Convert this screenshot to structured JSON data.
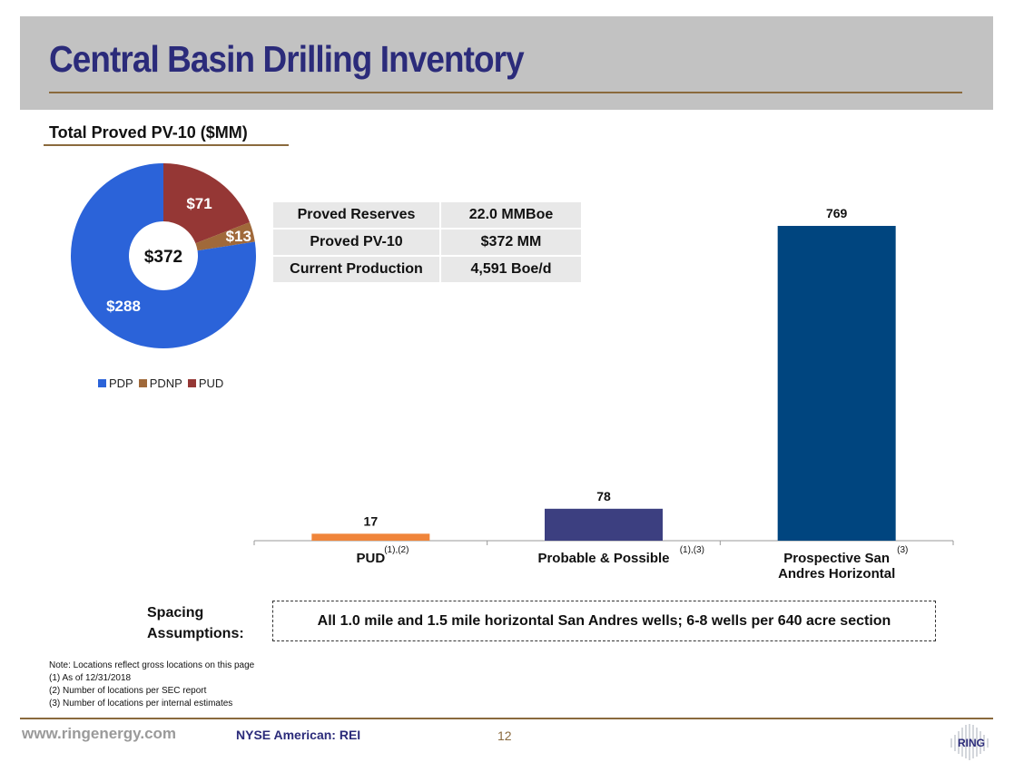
{
  "slide": {
    "title": "Central Basin Drilling Inventory",
    "section_title": "Total Proved PV-10 ($MM)"
  },
  "colors": {
    "pdp": "#2b63d9",
    "pdnp": "#a0693a",
    "pud_slice": "#953735",
    "bar_pud": "#f0853a",
    "bar_probable": "#3c3f80",
    "bar_prospective": "#00457f",
    "title": "#2b2b7a",
    "accent_rule": "#8a6a3d"
  },
  "kpi_table": [
    {
      "label": "Proved Reserves",
      "value": "22.0 MMBoe"
    },
    {
      "label": "Proved PV-10",
      "value": "$372 MM"
    },
    {
      "label": "Current Production",
      "value": "4,591 Boe/d"
    }
  ],
  "chart_data": [
    {
      "type": "pie",
      "donut": true,
      "center_label": "$372",
      "slices": [
        {
          "name": "PDP",
          "value": 288,
          "label": "$288",
          "color": "#2b63d9"
        },
        {
          "name": "PDNP",
          "value": 13,
          "label": "$13",
          "color": "#a0693a"
        },
        {
          "name": "PUD",
          "value": 71,
          "label": "$71",
          "color": "#953735"
        }
      ],
      "legend": [
        "PDP",
        "PDNP",
        "PUD"
      ],
      "legend_position": "bottom-left"
    },
    {
      "type": "bar",
      "categories": [
        {
          "lines": [
            "PUD"
          ],
          "footnote": "(1),(2)"
        },
        {
          "lines": [
            "Probable & Possible"
          ],
          "footnote": "(1),(3)"
        },
        {
          "lines": [
            "Prospective San",
            "Andres Horizontal"
          ],
          "footnote": "(3)"
        }
      ],
      "values": [
        17,
        78,
        769
      ],
      "data_labels": [
        "17",
        "78",
        "769"
      ],
      "colors": [
        "#f0853a",
        "#3c3f80",
        "#00457f"
      ],
      "ylim": [
        0,
        820
      ],
      "grid": false
    }
  ],
  "spacing": {
    "label_line1": "Spacing",
    "label_line2": "Assumptions:",
    "text": "All 1.0 mile and 1.5 mile horizontal San Andres wells; 6-8 wells per 640 acre section"
  },
  "notes": [
    "Note: Locations reflect gross locations on this page",
    "(1) As of 12/31/2018",
    "(2) Number of locations per SEC report",
    "(3) Number of locations per internal estimates"
  ],
  "footer": {
    "url": "www.ringenergy.com",
    "ticker": "NYSE American: REI",
    "page": "12",
    "logo_text": "RING"
  }
}
